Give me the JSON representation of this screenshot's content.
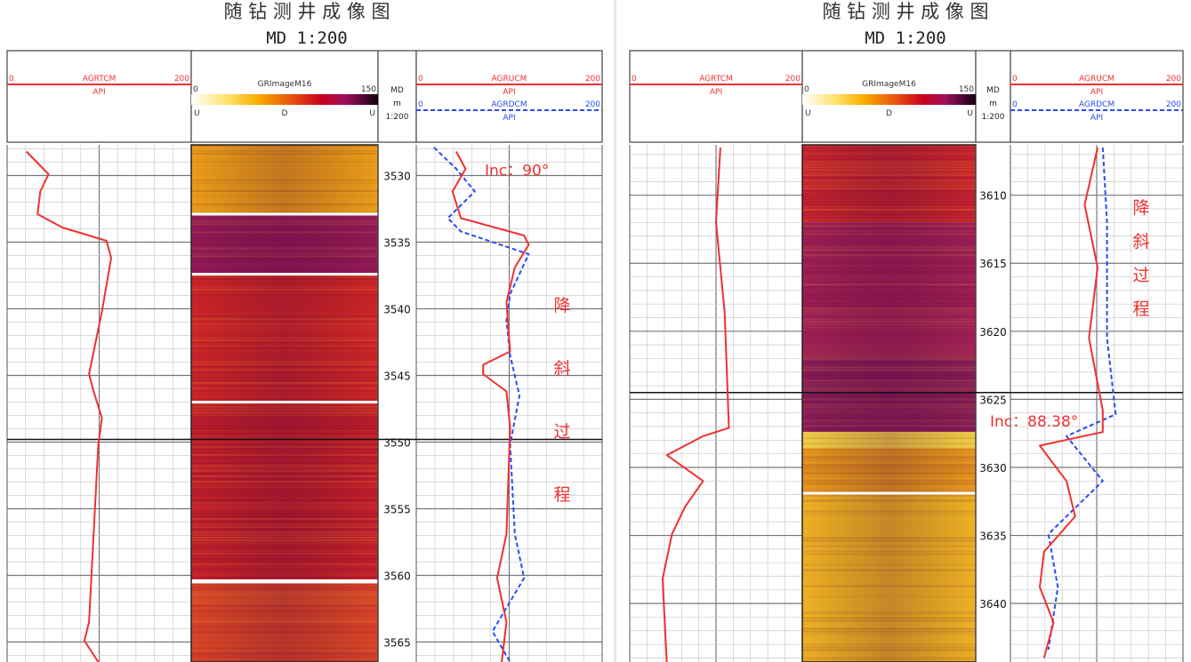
{
  "panels": [
    {
      "title": "随 钻 测 井 成 像 图",
      "subtitle": "MD 1:200",
      "depth_range": [
        3527.7,
        3566.5
      ],
      "depth_ticks": [
        3530,
        3535,
        3540,
        3545,
        3550,
        3555,
        3560,
        3565
      ],
      "marker_depth": 3549.8,
      "header": {
        "track1": {
          "min": "0",
          "name": "AGRTCM",
          "max": "200",
          "unit": "API"
        },
        "image": {
          "name": "GRImageM16",
          "min": "0",
          "max": "150",
          "labels": [
            "U",
            "D",
            "U"
          ]
        },
        "depth": {
          "label": "MD",
          "unit": "m",
          "scale": "1:200"
        },
        "track4": [
          {
            "min": "0",
            "name": "AGRUCM",
            "max": "200",
            "unit": "API"
          },
          {
            "min": "0",
            "name": "AGRDCM",
            "max": "200",
            "unit": "API"
          }
        ]
      },
      "annotations": {
        "inc": "Inc：90°",
        "inc_depth": 3529.6,
        "process": [
          "降",
          "斜",
          "过",
          "程"
        ]
      },
      "image_bands": [
        {
          "from": 3527.7,
          "to": 3532.8,
          "color": "#f7a21a"
        },
        {
          "from": 3532.8,
          "to": 3533.0,
          "color": "#ffffff"
        },
        {
          "from": 3533.0,
          "to": 3537.3,
          "color": "#9b1a5a"
        },
        {
          "from": 3537.3,
          "to": 3537.5,
          "color": "#ffffff"
        },
        {
          "from": 3537.5,
          "to": 3546.9,
          "color": "#d8262a"
        },
        {
          "from": 3546.9,
          "to": 3547.1,
          "color": "#ffffff"
        },
        {
          "from": 3547.1,
          "to": 3560.3,
          "color": "#cc1f2d"
        },
        {
          "from": 3560.3,
          "to": 3560.6,
          "color": "#ffffff"
        },
        {
          "from": 3560.6,
          "to": 3566.5,
          "color": "#e4452a"
        }
      ],
      "curves": {
        "AGRTCM": [
          [
            3528.2,
            21
          ],
          [
            3529.9,
            45
          ],
          [
            3531.2,
            36
          ],
          [
            3532.9,
            33
          ],
          [
            3533.9,
            60
          ],
          [
            3534.9,
            108
          ],
          [
            3536.2,
            113
          ],
          [
            3540.2,
            103
          ],
          [
            3544.9,
            89
          ],
          [
            3546.2,
            94
          ],
          [
            3548.2,
            103
          ],
          [
            3550.2,
            99
          ],
          [
            3563.5,
            89
          ],
          [
            3564.9,
            84
          ],
          [
            3566.5,
            99
          ]
        ],
        "AGRUCM": [
          [
            3528.2,
            43
          ],
          [
            3529.5,
            53
          ],
          [
            3531.2,
            39
          ],
          [
            3533.2,
            48
          ],
          [
            3534.5,
            116
          ],
          [
            3535.2,
            121
          ],
          [
            3536.9,
            106
          ],
          [
            3539.5,
            97
          ],
          [
            3543.2,
            101
          ],
          [
            3544.2,
            72
          ],
          [
            3544.9,
            72
          ],
          [
            3546.2,
            97
          ],
          [
            3548.9,
            101
          ],
          [
            3556.9,
            97
          ],
          [
            3560.2,
            87
          ],
          [
            3563.5,
            97
          ],
          [
            3566.5,
            92
          ]
        ],
        "AGRDCM": [
          [
            3527.9,
            19
          ],
          [
            3529.5,
            43
          ],
          [
            3531.2,
            63
          ],
          [
            3533.2,
            34
          ],
          [
            3534.2,
            48
          ],
          [
            3535.9,
            121
          ],
          [
            3538.9,
            101
          ],
          [
            3540.9,
            97
          ],
          [
            3543.5,
            101
          ],
          [
            3546.5,
            111
          ],
          [
            3550.2,
            101
          ],
          [
            3556.9,
            106
          ],
          [
            3560.2,
            116
          ],
          [
            3564.2,
            82
          ],
          [
            3566.5,
            101
          ]
        ]
      }
    },
    {
      "title": "随 钻 测 井 成 像 图",
      "subtitle": "MD 1:200",
      "depth_range": [
        3606.3,
        3644.3
      ],
      "depth_ticks": [
        3610,
        3615,
        3620,
        3625,
        3630,
        3635,
        3640
      ],
      "marker_depth": 3624.5,
      "header": {
        "track1": {
          "min": "0",
          "name": "AGRTCM",
          "max": "200",
          "unit": "API"
        },
        "image": {
          "name": "GRImageM16",
          "min": "0",
          "max": "150",
          "labels": [
            "U",
            "D",
            "U"
          ]
        },
        "depth": {
          "label": "MD",
          "unit": "m",
          "scale": "1:200"
        },
        "track4": [
          {
            "min": "0",
            "name": "AGRUCM",
            "max": "200",
            "unit": "API"
          },
          {
            "min": "0",
            "name": "AGRDCM",
            "max": "200",
            "unit": "API"
          }
        ]
      },
      "annotations": {
        "inc": "Inc：88.38°",
        "inc_depth": 3626.6,
        "process": [
          "降",
          "斜",
          "过",
          "程"
        ]
      },
      "image_bands": [
        {
          "from": 3606.3,
          "to": 3612.0,
          "color": "#d42630"
        },
        {
          "from": 3612.0,
          "to": 3622.0,
          "color": "#a8205a"
        },
        {
          "from": 3622.0,
          "to": 3627.4,
          "color": "#8e1c5c"
        },
        {
          "from": 3627.4,
          "to": 3628.6,
          "color": "#ffd84a"
        },
        {
          "from": 3628.6,
          "to": 3631.8,
          "color": "#f29a1e"
        },
        {
          "from": 3631.8,
          "to": 3632.0,
          "color": "#ffffff"
        },
        {
          "from": 3632.0,
          "to": 3644.3,
          "color": "#fbb825"
        }
      ],
      "curves": {
        "AGRTCM": [
          [
            3606.5,
            105
          ],
          [
            3612.0,
            100
          ],
          [
            3618.6,
            110
          ],
          [
            3627.1,
            115
          ],
          [
            3627.7,
            85
          ],
          [
            3629.1,
            43
          ],
          [
            3631.0,
            85
          ],
          [
            3632.9,
            64
          ],
          [
            3634.9,
            49
          ],
          [
            3638.2,
            38
          ],
          [
            3644.4,
            43
          ]
        ],
        "AGRUCM": [
          [
            3606.5,
            101
          ],
          [
            3610.7,
            86
          ],
          [
            3615.3,
            101
          ],
          [
            3620.5,
            91
          ],
          [
            3625.8,
            107
          ],
          [
            3627.4,
            107
          ],
          [
            3628.4,
            34
          ],
          [
            3631.0,
            65
          ],
          [
            3633.6,
            75
          ],
          [
            3636.2,
            39
          ],
          [
            3638.8,
            34
          ],
          [
            3641.4,
            50
          ],
          [
            3644.0,
            39
          ]
        ],
        "AGRDCM": [
          [
            3606.5,
            107
          ],
          [
            3612.0,
            112
          ],
          [
            3620.5,
            112
          ],
          [
            3626.1,
            122
          ],
          [
            3627.7,
            65
          ],
          [
            3631.0,
            107
          ],
          [
            3634.9,
            44
          ],
          [
            3638.8,
            55
          ],
          [
            3643.4,
            44
          ]
        ]
      }
    }
  ],
  "chart_data": {
    "type": "line",
    "scale_range": [
      0,
      200
    ],
    "image_scale": [
      0,
      150
    ],
    "colors": {
      "AGRTCM": "#f03030",
      "AGRUCM": "#f03030",
      "AGRDCM": "#2a4cf0",
      "annotation": "#f03030"
    },
    "grid": true
  }
}
